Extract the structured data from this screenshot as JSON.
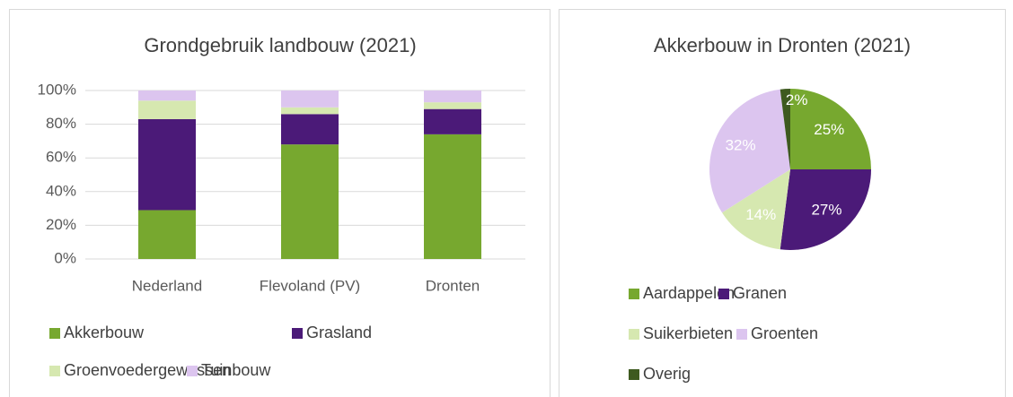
{
  "chart_data": [
    {
      "type": "stacked_bar",
      "title": "Grondgebruik landbouw (2021)",
      "categories": [
        "Nederland",
        "Flevoland (PV)",
        "Dronten"
      ],
      "series": [
        {
          "name": "Akkerbouw",
          "color": "#77a82f",
          "values": [
            29,
            68,
            74
          ]
        },
        {
          "name": "Grasland",
          "color": "#4b1a78",
          "values": [
            54,
            18,
            15
          ]
        },
        {
          "name": "Groenvoedergewassen",
          "color": "#d6e8b0",
          "values": [
            11,
            4,
            4
          ]
        },
        {
          "name": "Tuinbouw",
          "color": "#dcc5ef",
          "values": [
            6,
            10,
            7
          ]
        }
      ],
      "ylim": [
        0,
        100
      ],
      "yticks": [
        {
          "value": 0,
          "label": "0%"
        },
        {
          "value": 20,
          "label": "20%"
        },
        {
          "value": 40,
          "label": "40%"
        },
        {
          "value": 60,
          "label": "60%"
        },
        {
          "value": 80,
          "label": "80%"
        },
        {
          "value": 100,
          "label": "100%"
        }
      ],
      "grid": true,
      "legend": "bottom"
    },
    {
      "type": "pie",
      "title": "Akkerbouw in Dronten (2021)",
      "categories": [
        "Aardappelen",
        "Granen",
        "Suikerbieten",
        "Groenten",
        "Overig"
      ],
      "values": [
        25,
        27,
        14,
        32,
        2
      ],
      "value_labels": [
        "25%",
        "27%",
        "14%",
        "32%",
        "2%"
      ],
      "colors": [
        "#77a82f",
        "#4b1a78",
        "#d6e8b0",
        "#dcc5ef",
        "#3e5a1f"
      ],
      "legend": "bottom"
    }
  ]
}
